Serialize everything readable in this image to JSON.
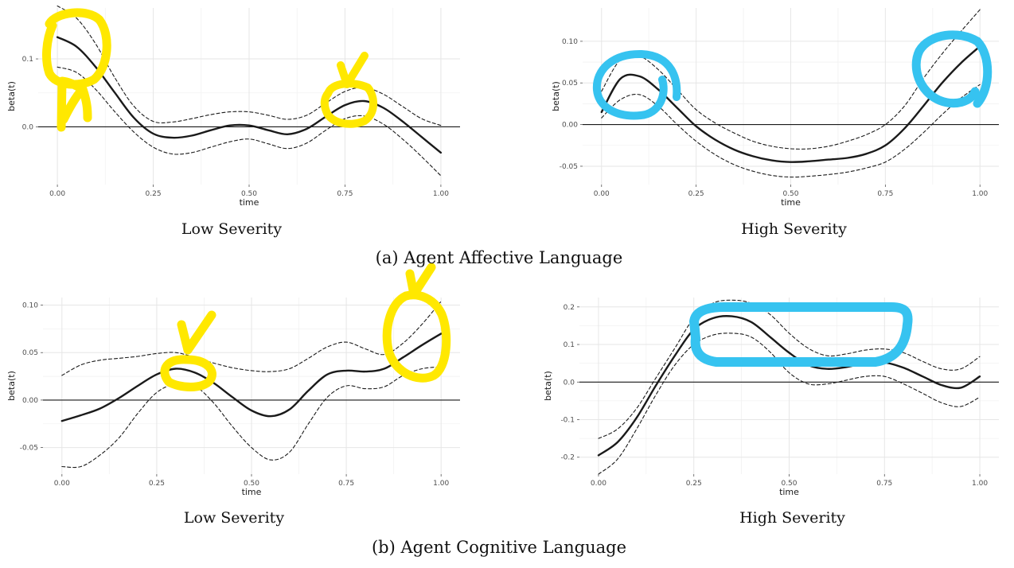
{
  "captions": {
    "a": "(a) Agent Affective Language",
    "b": "(b) Agent Cognitive Language"
  },
  "colors": {
    "estimate": "#1a1a1a",
    "band": "#1a1a1a",
    "zero_line": "#1a1a1a",
    "grid_major": "#e6e6e6",
    "grid_minor": "#f2f2f2",
    "highlight_yellow": "#ffe800",
    "highlight_blue": "#36c3f0"
  },
  "chart_data": [
    {
      "id": "a-low",
      "type": "line",
      "title": "Low Severity",
      "xlabel": "time",
      "ylabel": "beta(t)",
      "xlim": [
        -0.05,
        1.05
      ],
      "ylim": [
        -0.085,
        0.175
      ],
      "xticks": [
        "0.00",
        "0.25",
        "0.50",
        "0.75",
        "1.00"
      ],
      "yticks": [
        {
          "v": 0.0,
          "label": "0.0"
        },
        {
          "v": 0.1,
          "label": "0.1"
        }
      ],
      "grid": true,
      "x": [
        0,
        0.05,
        0.1,
        0.15,
        0.2,
        0.25,
        0.3,
        0.35,
        0.4,
        0.45,
        0.5,
        0.55,
        0.6,
        0.65,
        0.7,
        0.75,
        0.8,
        0.85,
        0.9,
        0.95,
        1.0
      ],
      "series": [
        {
          "role": "estimate",
          "values": [
            0.132,
            0.118,
            0.088,
            0.05,
            0.013,
            -0.01,
            -0.016,
            -0.013,
            -0.005,
            0.002,
            0.002,
            -0.005,
            -0.011,
            -0.003,
            0.015,
            0.032,
            0.038,
            0.028,
            0.008,
            -0.015,
            -0.038
          ]
        },
        {
          "role": "upper",
          "values": [
            0.178,
            0.16,
            0.122,
            0.072,
            0.03,
            0.008,
            0.007,
            0.012,
            0.018,
            0.022,
            0.022,
            0.017,
            0.011,
            0.017,
            0.035,
            0.052,
            0.058,
            0.048,
            0.03,
            0.012,
            0.002
          ]
        },
        {
          "role": "lower",
          "values": [
            0.088,
            0.08,
            0.055,
            0.022,
            -0.008,
            -0.03,
            -0.04,
            -0.038,
            -0.03,
            -0.022,
            -0.018,
            -0.025,
            -0.032,
            -0.024,
            -0.005,
            0.012,
            0.016,
            0.004,
            -0.018,
            -0.044,
            -0.072
          ]
        }
      ],
      "highlights": [
        {
          "color": "yellow",
          "shape": "circle+check"
        },
        {
          "color": "yellow",
          "shape": "circle+check"
        }
      ]
    },
    {
      "id": "a-high",
      "type": "line",
      "title": "High Severity",
      "xlabel": "time",
      "ylabel": "beta(t)",
      "xlim": [
        -0.05,
        1.05
      ],
      "ylim": [
        -0.072,
        0.14
      ],
      "xticks": [
        "0.00",
        "0.25",
        "0.50",
        "0.75",
        "1.00"
      ],
      "yticks": [
        {
          "v": -0.05,
          "label": "-0.05"
        },
        {
          "v": 0.0,
          "label": "0.00"
        },
        {
          "v": 0.05,
          "label": "0.05"
        },
        {
          "v": 0.1,
          "label": "0.10"
        }
      ],
      "grid": true,
      "x": [
        0,
        0.05,
        0.1,
        0.15,
        0.2,
        0.25,
        0.3,
        0.35,
        0.4,
        0.45,
        0.5,
        0.55,
        0.6,
        0.65,
        0.7,
        0.75,
        0.8,
        0.85,
        0.9,
        0.95,
        1.0
      ],
      "series": [
        {
          "role": "estimate",
          "values": [
            0.015,
            0.055,
            0.058,
            0.042,
            0.02,
            -0.002,
            -0.018,
            -0.03,
            -0.038,
            -0.043,
            -0.045,
            -0.044,
            -0.042,
            -0.04,
            -0.035,
            -0.025,
            -0.005,
            0.022,
            0.05,
            0.074,
            0.094
          ]
        },
        {
          "role": "upper",
          "values": [
            0.04,
            0.078,
            0.082,
            0.066,
            0.042,
            0.018,
            0.002,
            -0.01,
            -0.02,
            -0.026,
            -0.029,
            -0.029,
            -0.026,
            -0.02,
            -0.012,
            0.0,
            0.022,
            0.055,
            0.085,
            0.112,
            0.138
          ]
        },
        {
          "role": "lower",
          "values": [
            0.008,
            0.03,
            0.036,
            0.022,
            0.0,
            -0.02,
            -0.036,
            -0.048,
            -0.056,
            -0.061,
            -0.063,
            -0.062,
            -0.06,
            -0.057,
            -0.052,
            -0.045,
            -0.03,
            -0.01,
            0.012,
            0.032,
            0.048
          ]
        }
      ],
      "highlights": [
        {
          "color": "blue",
          "shape": "circle"
        },
        {
          "color": "blue",
          "shape": "circle"
        }
      ]
    },
    {
      "id": "b-low",
      "type": "line",
      "title": "Low Severity",
      "xlabel": "time",
      "ylabel": "beta(t)",
      "xlim": [
        -0.05,
        1.05
      ],
      "ylim": [
        -0.078,
        0.108
      ],
      "xticks": [
        "0.00",
        "0.25",
        "0.50",
        "0.75",
        "1.00"
      ],
      "yticks": [
        {
          "v": -0.05,
          "label": "-0.05"
        },
        {
          "v": 0.0,
          "label": "0.00"
        },
        {
          "v": 0.05,
          "label": "0.05"
        },
        {
          "v": 0.1,
          "label": "0.10"
        }
      ],
      "grid": true,
      "x": [
        0,
        0.05,
        0.1,
        0.15,
        0.2,
        0.25,
        0.3,
        0.35,
        0.4,
        0.45,
        0.5,
        0.55,
        0.6,
        0.65,
        0.7,
        0.75,
        0.8,
        0.85,
        0.9,
        0.95,
        1.0
      ],
      "series": [
        {
          "role": "estimate",
          "values": [
            -0.022,
            -0.016,
            -0.009,
            0.002,
            0.015,
            0.027,
            0.033,
            0.029,
            0.018,
            0.003,
            -0.011,
            -0.017,
            -0.01,
            0.01,
            0.027,
            0.031,
            0.03,
            0.033,
            0.045,
            0.058,
            0.07
          ]
        },
        {
          "role": "upper",
          "values": [
            0.026,
            0.037,
            0.042,
            0.044,
            0.046,
            0.049,
            0.05,
            0.045,
            0.039,
            0.034,
            0.031,
            0.03,
            0.033,
            0.044,
            0.056,
            0.061,
            0.054,
            0.048,
            0.06,
            0.08,
            0.104
          ]
        },
        {
          "role": "lower",
          "values": [
            -0.07,
            -0.07,
            -0.058,
            -0.04,
            -0.014,
            0.008,
            0.017,
            0.015,
            -0.003,
            -0.028,
            -0.05,
            -0.063,
            -0.055,
            -0.025,
            0.003,
            0.015,
            0.012,
            0.014,
            0.026,
            0.033,
            0.035
          ]
        }
      ],
      "highlights": [
        {
          "color": "yellow",
          "shape": "circle+check"
        },
        {
          "color": "yellow",
          "shape": "circle+check"
        }
      ]
    },
    {
      "id": "b-high",
      "type": "line",
      "title": "High Severity",
      "xlabel": "time",
      "ylabel": "beta(t)",
      "xlim": [
        -0.05,
        1.05
      ],
      "ylim": [
        -0.245,
        0.225
      ],
      "xticks": [
        "0.00",
        "0.25",
        "0.50",
        "0.75",
        "1.00"
      ],
      "yticks": [
        {
          "v": -0.2,
          "label": "-0.2"
        },
        {
          "v": -0.1,
          "label": "-0.1"
        },
        {
          "v": 0.0,
          "label": "0.0"
        },
        {
          "v": 0.1,
          "label": "0.1"
        },
        {
          "v": 0.2,
          "label": "0.2"
        }
      ],
      "grid": true,
      "x": [
        0,
        0.05,
        0.1,
        0.15,
        0.2,
        0.25,
        0.3,
        0.35,
        0.4,
        0.45,
        0.5,
        0.55,
        0.6,
        0.65,
        0.7,
        0.75,
        0.8,
        0.85,
        0.9,
        0.95,
        1.0
      ],
      "series": [
        {
          "role": "estimate",
          "values": [
            -0.195,
            -0.16,
            -0.095,
            -0.01,
            0.07,
            0.14,
            0.17,
            0.175,
            0.16,
            0.12,
            0.078,
            0.045,
            0.035,
            0.04,
            0.05,
            0.052,
            0.038,
            0.015,
            -0.008,
            -0.015,
            0.015
          ]
        },
        {
          "role": "upper",
          "values": [
            -0.15,
            -0.125,
            -0.07,
            0.01,
            0.09,
            0.17,
            0.21,
            0.218,
            0.21,
            0.18,
            0.13,
            0.09,
            0.07,
            0.075,
            0.085,
            0.088,
            0.078,
            0.055,
            0.035,
            0.035,
            0.068
          ]
        },
        {
          "role": "lower",
          "values": [
            -0.245,
            -0.205,
            -0.125,
            -0.035,
            0.045,
            0.1,
            0.125,
            0.13,
            0.12,
            0.08,
            0.025,
            -0.005,
            -0.005,
            0.005,
            0.015,
            0.015,
            -0.005,
            -0.03,
            -0.055,
            -0.065,
            -0.04
          ]
        }
      ],
      "highlights": [
        {
          "color": "blue",
          "shape": "rounded-rect"
        }
      ]
    }
  ]
}
